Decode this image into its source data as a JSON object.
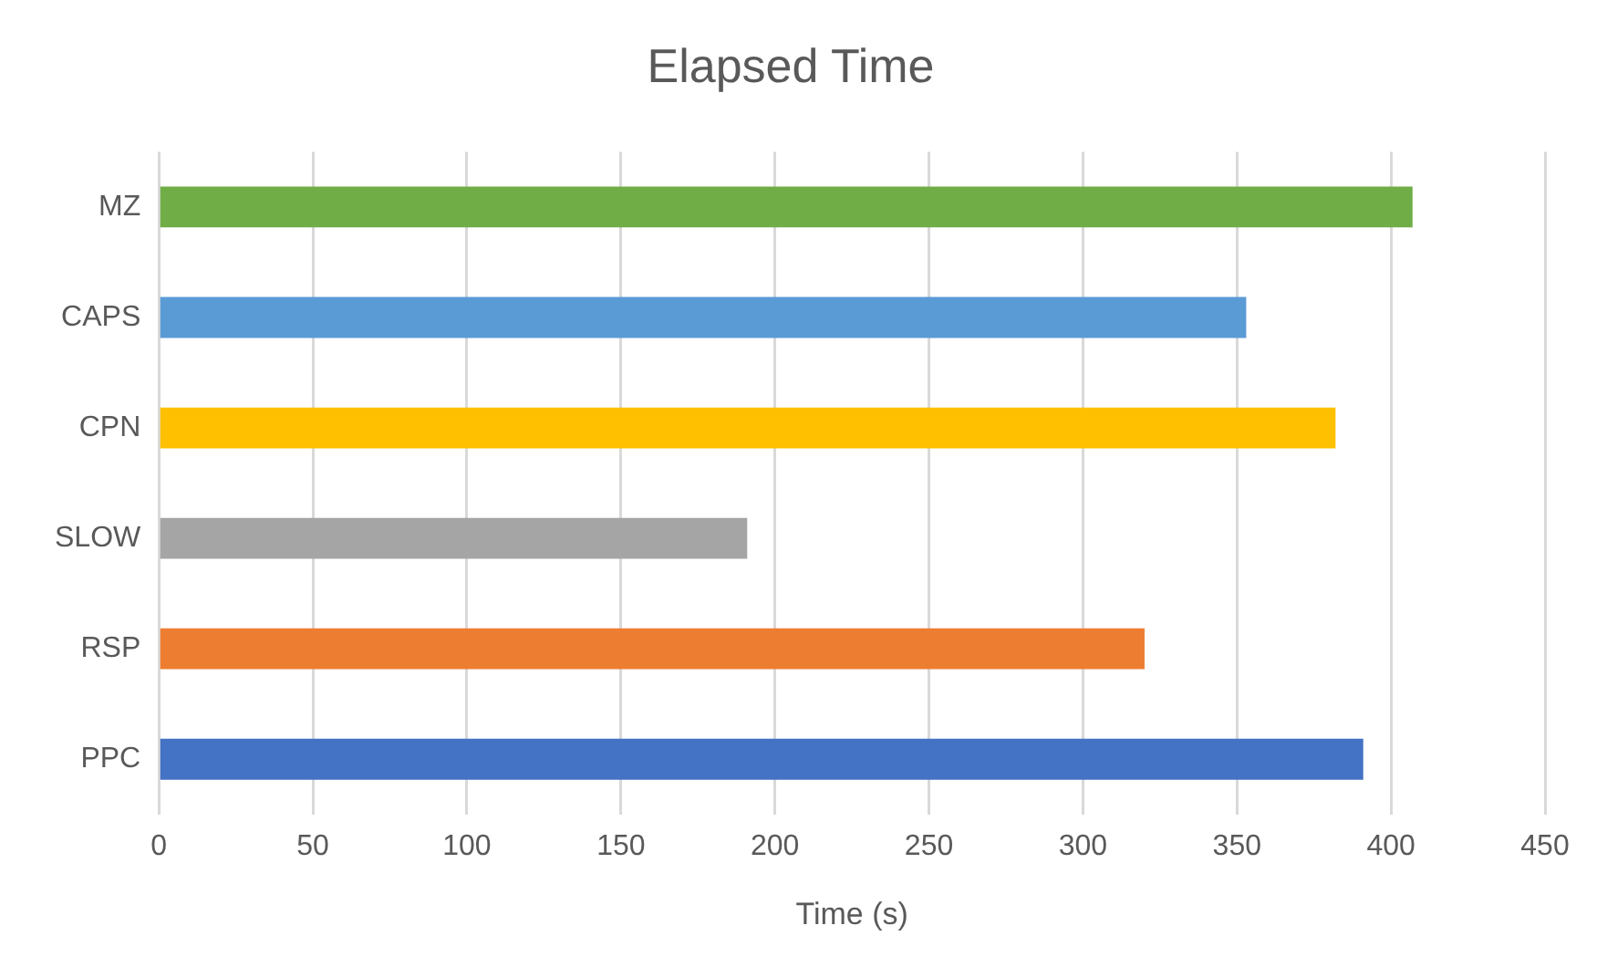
{
  "chart_data": {
    "type": "bar",
    "orientation": "horizontal",
    "title": "Elapsed Time",
    "xlabel": "Time (s)",
    "categories": [
      "MZ",
      "CAPS",
      "CPN",
      "SLOW",
      "RSP",
      "PPC"
    ],
    "values": [
      407,
      353,
      382,
      191,
      320,
      391
    ],
    "colors": [
      "#70ad47",
      "#5b9bd5",
      "#ffc000",
      "#a5a5a5",
      "#ed7d31",
      "#4472c4"
    ],
    "xlim": [
      0,
      450
    ],
    "xticks": [
      0,
      50,
      100,
      150,
      200,
      250,
      300,
      350,
      400,
      450
    ],
    "grid": "x",
    "legend": false
  }
}
